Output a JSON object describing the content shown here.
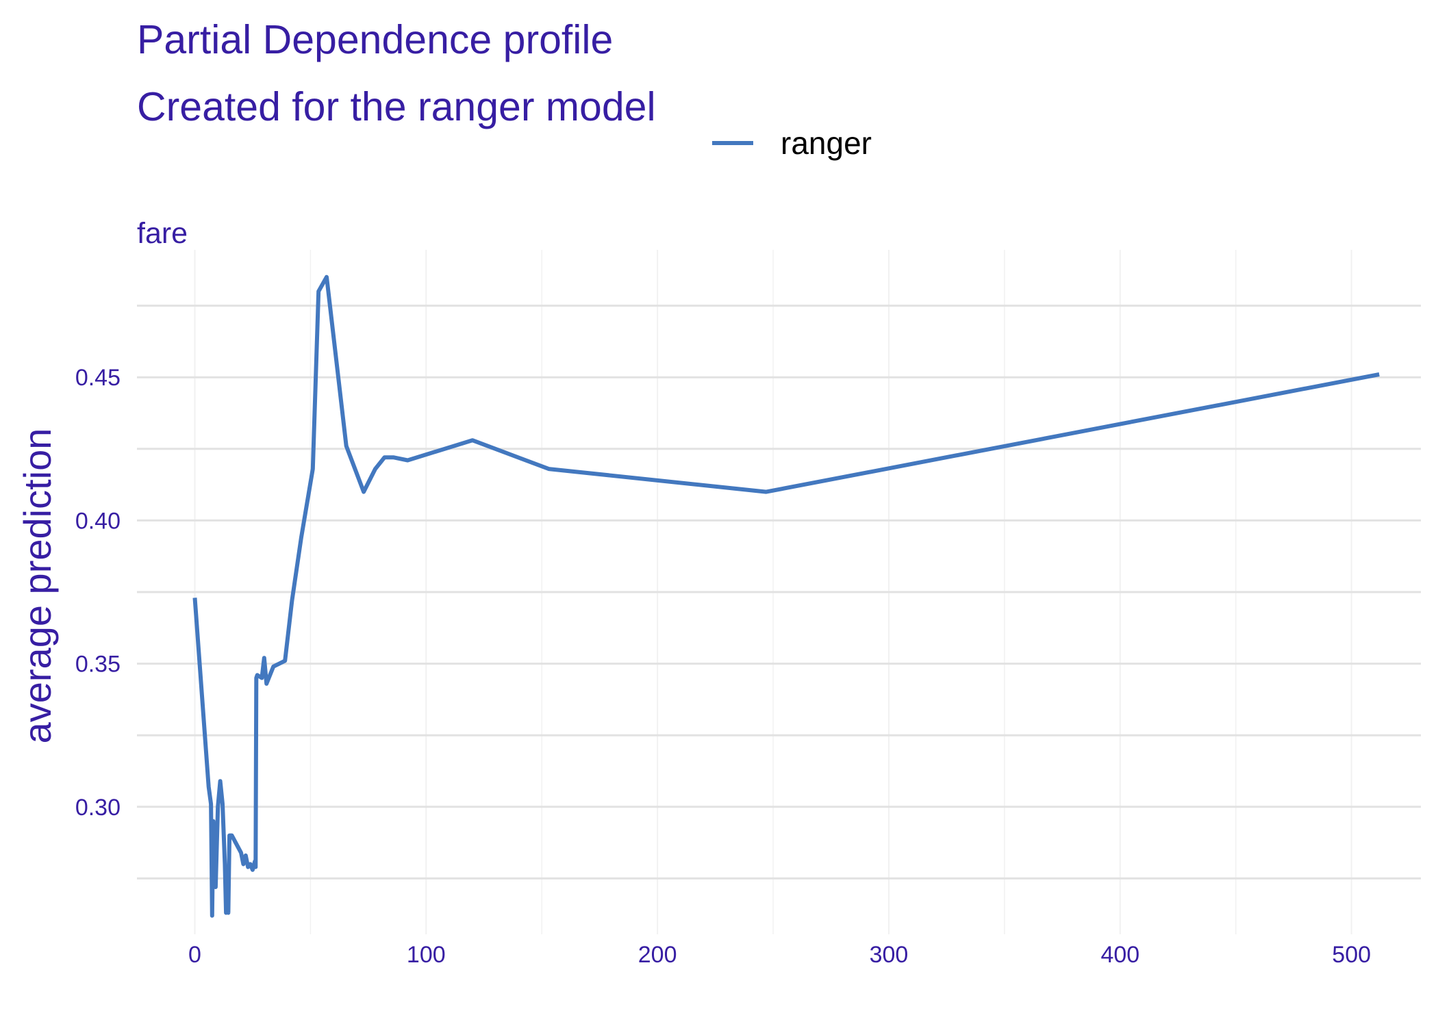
{
  "colors": {
    "title": "#371ea3",
    "line": "#4378bf",
    "grid_major": "#e2e2e2",
    "grid_minor": "#f1f1f1",
    "legend_text": "#000000"
  },
  "chart_data": {
    "type": "line",
    "title": "Partial Dependence profile",
    "subtitle": "Created for the ranger model",
    "facet_label": "fare",
    "xlabel": "",
    "ylabel": "average prediction",
    "xlim": [
      -25,
      530
    ],
    "ylim": [
      0.2555,
      0.4945
    ],
    "x_ticks": [
      0,
      100,
      200,
      300,
      400,
      500
    ],
    "x_tick_labels": [
      "0",
      "100",
      "200",
      "300",
      "400",
      "500"
    ],
    "y_ticks": [
      0.3,
      0.35,
      0.4,
      0.45
    ],
    "y_tick_labels": [
      "0.30",
      "0.35",
      "0.40",
      "0.45"
    ],
    "y_minor_ticks": [
      0.275,
      0.325,
      0.375,
      0.425,
      0.475
    ],
    "grid": true,
    "legend": {
      "position": "top",
      "entries": [
        "ranger"
      ]
    },
    "series": [
      {
        "name": "ranger",
        "x": [
          0,
          6,
          7,
          7.5,
          8,
          9,
          10,
          11,
          12,
          13,
          13.5,
          14,
          14.5,
          15,
          16,
          20,
          21,
          22,
          23,
          24,
          25,
          26,
          26.3,
          26.6,
          27,
          29,
          30,
          31,
          34,
          39,
          42,
          46,
          51,
          53.5,
          57,
          65.5,
          73,
          78,
          82,
          86,
          92,
          120,
          153,
          247,
          512
        ],
        "y": [
          0.373,
          0.307,
          0.301,
          0.262,
          0.295,
          0.272,
          0.3,
          0.309,
          0.301,
          0.28,
          0.263,
          0.276,
          0.263,
          0.29,
          0.29,
          0.284,
          0.28,
          0.283,
          0.279,
          0.28,
          0.278,
          0.281,
          0.279,
          0.345,
          0.346,
          0.345,
          0.352,
          0.343,
          0.349,
          0.351,
          0.372,
          0.394,
          0.418,
          0.48,
          0.485,
          0.426,
          0.41,
          0.418,
          0.422,
          0.422,
          0.421,
          0.428,
          0.418,
          0.41,
          0.451
        ]
      }
    ]
  }
}
